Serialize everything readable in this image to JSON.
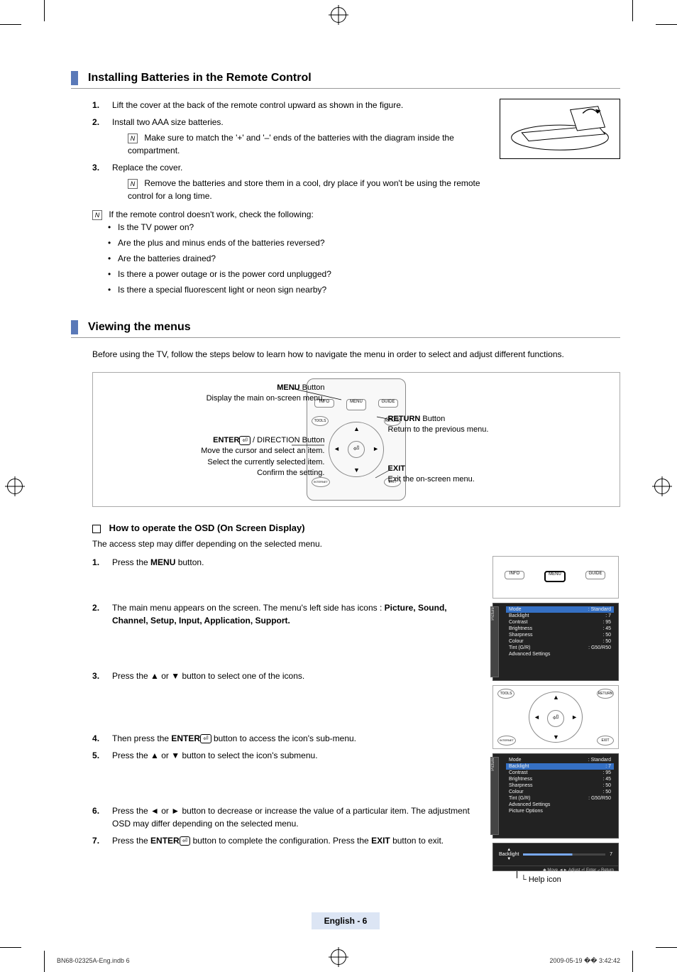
{
  "section1": {
    "title": "Installing Batteries in the Remote Control",
    "steps": [
      "Lift the cover at the back of the remote control upward as shown in the figure.",
      "Install two AAA size batteries.",
      "Replace the cover."
    ],
    "note1": "Make sure to match the '+' and '–' ends of the batteries with the diagram inside the compartment.",
    "note2": "Remove the batteries and store them in a cool, dry place if you won't be using the remote control for a long time.",
    "checkIntro": "If the remote control doesn't work, check the following:",
    "checks": [
      "Is the TV power on?",
      "Are the plus and minus ends of the batteries reversed?",
      "Are the batteries drained?",
      "Is there a power outage or is the power cord unplugged?",
      "Is there a special fluorescent light or neon sign nearby?"
    ]
  },
  "section2": {
    "title": "Viewing the menus",
    "intro": "Before using the TV, follow the steps below to learn how to navigate the menu in order to select and adjust different functions.",
    "callouts": {
      "menu_title": "MENU",
      "menu_suffix": " Button",
      "menu_desc": "Display the main on-screen menu.",
      "enter_title": "ENTER",
      "enter_suffix": " / DIRECTION Button",
      "enter_desc1": "Move the cursor and select an item.",
      "enter_desc2": "Select the currently selected item.",
      "enter_desc3": "Confirm the setting.",
      "return_title": "RETURN",
      "return_suffix": " Button",
      "return_desc": "Return to the previous menu.",
      "exit_title": "EXIT",
      "exit_desc": "Exit the on-screen menu."
    }
  },
  "osd": {
    "heading": "How to operate the OSD (On Screen Display)",
    "intro": "The access step may differ depending on the selected menu.",
    "step1_pre": "Press the ",
    "step1_b": "MENU",
    "step1_post": " button.",
    "step2_pre": "The main menu appears on the screen. The menu's left side has icons : ",
    "step2_b": "Picture, Sound, Channel, Setup, Input, Application, Support.",
    "step3": "Press the ▲ or ▼ button to select one of the icons.",
    "step4_pre": "Then press the ",
    "step4_b": "ENTER",
    "step4_post": " button to access the icon's sub-menu.",
    "step5": "Press the ▲ or ▼ button to select the icon's submenu.",
    "step6": "Press the ◄ or ► button to decrease or increase the value of a particular item. The adjustment OSD may differ depending on the selected menu.",
    "step7_pre": "Press the ",
    "step7_b1": "ENTER",
    "step7_mid": " button to complete the configuration. Press the ",
    "step7_b2": "EXIT",
    "step7_post": " button to exit.",
    "help_label": "Help icon"
  },
  "menu1": {
    "tab": "Picture",
    "rows": [
      {
        "l": "Mode",
        "r": ": Standard",
        "hl": true
      },
      {
        "l": "Backlight",
        "r": ": 7"
      },
      {
        "l": "Contrast",
        "r": ": 95"
      },
      {
        "l": "Brightness",
        "r": ": 45"
      },
      {
        "l": "Sharpness",
        "r": ": 50"
      },
      {
        "l": "Colour",
        "r": ": 50"
      },
      {
        "l": "Tint (G/R)",
        "r": ": G50/R50"
      },
      {
        "l": "Advanced Settings",
        "r": ""
      }
    ]
  },
  "menu2": {
    "tab": "Picture",
    "rows": [
      {
        "l": "Mode",
        "r": ": Standard"
      },
      {
        "l": "Backlight",
        "r": ": 7",
        "hl": true
      },
      {
        "l": "Contrast",
        "r": ": 95"
      },
      {
        "l": "Brightness",
        "r": ": 45"
      },
      {
        "l": "Sharpness",
        "r": ": 50"
      },
      {
        "l": "Colour",
        "r": ": 50"
      },
      {
        "l": "Tint (G/R)",
        "r": ": G50/R50"
      },
      {
        "l": "Advanced Settings",
        "r": ""
      },
      {
        "l": "Picture Options",
        "r": ""
      }
    ]
  },
  "slider": {
    "label": "Backlight",
    "value": "7",
    "footer": "◆ Move   ◄► Adjust   ⏎ Enter   ⤶ Return"
  },
  "remote_buttons": {
    "info": "INFO",
    "menu": "MENU",
    "guide": "GUIDE",
    "tools": "TOOLS",
    "return": "RETURN",
    "internet": "INTERNET",
    "exit": "EXIT"
  },
  "footer": {
    "lang": "English - 6",
    "doc": "BN68-02325A-Eng.indb   6",
    "time": "2009-05-19   �� 3:42:42"
  }
}
